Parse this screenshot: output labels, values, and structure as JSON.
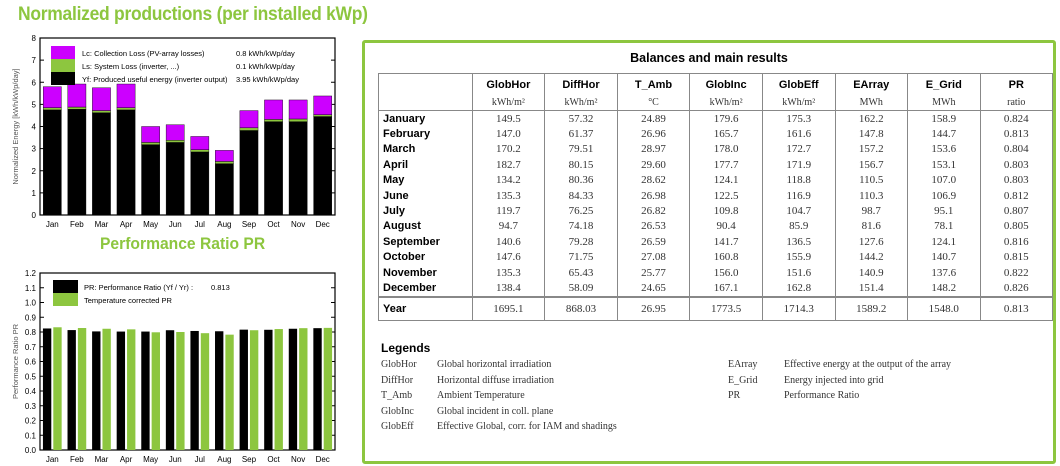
{
  "titles": {
    "normalized": "Normalized productions (per installed kWp)",
    "pr": "Performance Ratio PR"
  },
  "colors": {
    "collection_loss": "#cc00ff",
    "system_loss": "#8dc63f",
    "useful": "#000000",
    "accent": "#8dc63f"
  },
  "chart_data": [
    {
      "type": "bar",
      "stacked": true,
      "categories": [
        "Jan",
        "Feb",
        "Mar",
        "Apr",
        "May",
        "Jun",
        "Jul",
        "Aug",
        "Sep",
        "Oct",
        "Nov",
        "Dec"
      ],
      "ylabel": "Normalized Energy [kWh/kWp/day]",
      "ylim": [
        0,
        8
      ],
      "yticks": [
        0,
        1,
        2,
        3,
        4,
        5,
        6,
        7,
        8
      ],
      "legend": "top-left",
      "series": [
        {
          "name": "Yf: Produced useful energy  (inverter output)",
          "value_label": "3.95 kWh/kWp/day",
          "color": "#000000",
          "values": [
            4.75,
            4.78,
            4.62,
            4.75,
            3.18,
            3.28,
            2.85,
            2.32,
            3.82,
            4.22,
            4.22,
            4.45
          ]
        },
        {
          "name": "Ls: System Loss  (inverter, ...)",
          "value_label": "0.1 kWh/kWp/day",
          "color": "#8dc63f",
          "values": [
            0.1,
            0.1,
            0.1,
            0.1,
            0.1,
            0.1,
            0.1,
            0.1,
            0.12,
            0.1,
            0.12,
            0.08
          ]
        },
        {
          "name": "Lc: Collection Loss (PV-array losses)",
          "value_label": "0.8 kWh/kWp/day",
          "color": "#cc00ff",
          "values": [
            0.95,
            1.04,
            1.03,
            1.07,
            0.72,
            0.7,
            0.6,
            0.5,
            0.78,
            0.88,
            0.86,
            0.85
          ]
        }
      ]
    },
    {
      "type": "bar",
      "categories": [
        "Jan",
        "Feb",
        "Mar",
        "Apr",
        "May",
        "Jun",
        "Jul",
        "Aug",
        "Sep",
        "Oct",
        "Nov",
        "Dec"
      ],
      "ylabel": "Performance Ratio PR",
      "ylim": [
        0,
        1.2
      ],
      "yticks": [
        "0.0",
        "0.1",
        "0.2",
        "0.3",
        "0.4",
        "0.5",
        "0.6",
        "0.7",
        "0.8",
        "0.9",
        "1.0",
        "1.1",
        "1.2"
      ],
      "legend": "top-left",
      "series": [
        {
          "name": "PR: Performance Ratio (Yf / Yr) :",
          "value_label": "0.813",
          "color": "#000000",
          "values": [
            0.824,
            0.813,
            0.804,
            0.803,
            0.803,
            0.812,
            0.807,
            0.805,
            0.816,
            0.815,
            0.822,
            0.826
          ]
        },
        {
          "name": "Temperature corrected PR",
          "color": "#8dc63f",
          "values": [
            0.832,
            0.827,
            0.822,
            0.818,
            0.798,
            0.8,
            0.792,
            0.782,
            0.812,
            0.82,
            0.826,
            0.828
          ]
        }
      ]
    }
  ],
  "results": {
    "title": "Balances and main results",
    "headers": [
      "GlobHor",
      "DiffHor",
      "T_Amb",
      "GlobInc",
      "GlobEff",
      "EArray",
      "E_Grid",
      "PR"
    ],
    "units": [
      "kWh/m²",
      "kWh/m²",
      "°C",
      "kWh/m²",
      "kWh/m²",
      "MWh",
      "MWh",
      "ratio"
    ],
    "rows": [
      [
        "January",
        "149.5",
        "57.32",
        "24.89",
        "179.6",
        "175.3",
        "162.2",
        "158.9",
        "0.824"
      ],
      [
        "February",
        "147.0",
        "61.37",
        "26.96",
        "165.7",
        "161.6",
        "147.8",
        "144.7",
        "0.813"
      ],
      [
        "March",
        "170.2",
        "79.51",
        "28.97",
        "178.0",
        "172.7",
        "157.2",
        "153.6",
        "0.804"
      ],
      [
        "April",
        "182.7",
        "80.15",
        "29.60",
        "177.7",
        "171.9",
        "156.7",
        "153.1",
        "0.803"
      ],
      [
        "May",
        "134.2",
        "80.36",
        "28.62",
        "124.1",
        "118.8",
        "110.5",
        "107.0",
        "0.803"
      ],
      [
        "June",
        "135.3",
        "84.33",
        "26.98",
        "122.5",
        "116.9",
        "110.3",
        "106.9",
        "0.812"
      ],
      [
        "July",
        "119.7",
        "76.25",
        "26.82",
        "109.8",
        "104.7",
        "98.7",
        "95.1",
        "0.807"
      ],
      [
        "August",
        "94.7",
        "74.18",
        "26.53",
        "90.4",
        "85.9",
        "81.6",
        "78.1",
        "0.805"
      ],
      [
        "September",
        "140.6",
        "79.28",
        "26.59",
        "141.7",
        "136.5",
        "127.6",
        "124.1",
        "0.816"
      ],
      [
        "October",
        "147.6",
        "71.75",
        "27.08",
        "160.8",
        "155.9",
        "144.2",
        "140.7",
        "0.815"
      ],
      [
        "November",
        "135.3",
        "65.43",
        "25.77",
        "156.0",
        "151.6",
        "140.9",
        "137.6",
        "0.822"
      ],
      [
        "December",
        "138.4",
        "58.09",
        "24.65",
        "167.1",
        "162.8",
        "151.4",
        "148.2",
        "0.826"
      ]
    ],
    "year": [
      "Year",
      "1695.1",
      "868.03",
      "26.95",
      "1773.5",
      "1714.3",
      "1589.2",
      "1548.0",
      "0.813"
    ]
  },
  "legends": {
    "title": "Legends",
    "items": [
      [
        "GlobHor",
        "Global horizontal irradiation"
      ],
      [
        "DiffHor",
        "Horizontal diffuse irradiation"
      ],
      [
        "T_Amb",
        "Ambient Temperature"
      ],
      [
        "GlobInc",
        "Global incident in coll. plane"
      ],
      [
        "GlobEff",
        "Effective Global, corr. for IAM and shadings"
      ],
      [
        "EArray",
        "Effective energy at the output of the array"
      ],
      [
        "E_Grid",
        "Energy injected into grid"
      ],
      [
        "PR",
        "Performance Ratio"
      ]
    ]
  }
}
